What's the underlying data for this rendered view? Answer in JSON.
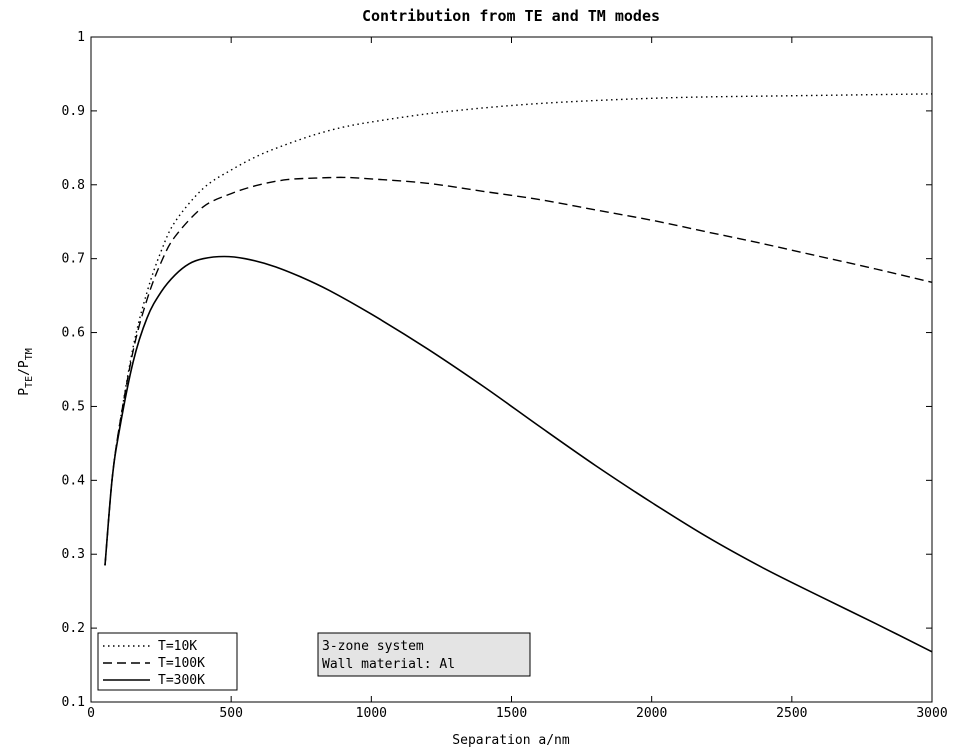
{
  "chart_data": {
    "type": "line",
    "title": "Contribution from TE and TM modes",
    "xlabel": "Separation a/nm",
    "ylabel": {
      "base1": "P",
      "sub1": "TE",
      "sep": "/",
      "base2": "P",
      "sub2": "TM"
    },
    "xlim": [
      0,
      3000
    ],
    "ylim": [
      0.1,
      1.0
    ],
    "xticks": [
      0,
      500,
      1000,
      1500,
      2000,
      2500,
      3000
    ],
    "yticks": [
      0.1,
      0.2,
      0.3,
      0.4,
      0.5,
      0.6,
      0.7,
      0.8,
      0.9,
      1.0
    ],
    "xtick_labels": [
      "0",
      "500",
      "1000",
      "1500",
      "2000",
      "2500",
      "3000"
    ],
    "ytick_labels": [
      "0.1",
      "0.2",
      "0.3",
      "0.4",
      "0.5",
      "0.6",
      "0.7",
      "0.8",
      "0.9",
      "1"
    ],
    "grid": false,
    "legend_position": "bottom-left",
    "series": [
      {
        "name": "T=10K",
        "style": "dotted",
        "color": "#000000",
        "points": [
          [
            50,
            0.285
          ],
          [
            75,
            0.4
          ],
          [
            100,
            0.47
          ],
          [
            150,
            0.58
          ],
          [
            200,
            0.655
          ],
          [
            250,
            0.71
          ],
          [
            300,
            0.75
          ],
          [
            400,
            0.795
          ],
          [
            500,
            0.82
          ],
          [
            600,
            0.84
          ],
          [
            700,
            0.855
          ],
          [
            800,
            0.868
          ],
          [
            900,
            0.878
          ],
          [
            1000,
            0.885
          ],
          [
            1200,
            0.896
          ],
          [
            1400,
            0.904
          ],
          [
            1600,
            0.91
          ],
          [
            1800,
            0.914
          ],
          [
            2000,
            0.917
          ],
          [
            2200,
            0.919
          ],
          [
            2400,
            0.92
          ],
          [
            2600,
            0.921
          ],
          [
            2800,
            0.922
          ],
          [
            3000,
            0.923
          ]
        ]
      },
      {
        "name": "T=100K",
        "style": "dashed",
        "color": "#000000",
        "points": [
          [
            50,
            0.285
          ],
          [
            75,
            0.4
          ],
          [
            100,
            0.47
          ],
          [
            150,
            0.575
          ],
          [
            200,
            0.645
          ],
          [
            250,
            0.695
          ],
          [
            300,
            0.73
          ],
          [
            400,
            0.77
          ],
          [
            500,
            0.788
          ],
          [
            600,
            0.8
          ],
          [
            700,
            0.807
          ],
          [
            800,
            0.809
          ],
          [
            900,
            0.81
          ],
          [
            1000,
            0.808
          ],
          [
            1200,
            0.802
          ],
          [
            1400,
            0.791
          ],
          [
            1600,
            0.78
          ],
          [
            1800,
            0.766
          ],
          [
            2000,
            0.752
          ],
          [
            2200,
            0.736
          ],
          [
            2400,
            0.72
          ],
          [
            2600,
            0.703
          ],
          [
            2800,
            0.686
          ],
          [
            3000,
            0.668
          ]
        ]
      },
      {
        "name": "T=300K",
        "style": "solid",
        "color": "#000000",
        "points": [
          [
            50,
            0.285
          ],
          [
            75,
            0.4
          ],
          [
            100,
            0.465
          ],
          [
            150,
            0.56
          ],
          [
            200,
            0.62
          ],
          [
            250,
            0.655
          ],
          [
            300,
            0.678
          ],
          [
            350,
            0.693
          ],
          [
            400,
            0.7
          ],
          [
            475,
            0.703
          ],
          [
            550,
            0.7
          ],
          [
            650,
            0.69
          ],
          [
            750,
            0.675
          ],
          [
            850,
            0.657
          ],
          [
            1000,
            0.625
          ],
          [
            1200,
            0.578
          ],
          [
            1400,
            0.527
          ],
          [
            1600,
            0.473
          ],
          [
            1800,
            0.42
          ],
          [
            2000,
            0.37
          ],
          [
            2200,
            0.323
          ],
          [
            2400,
            0.281
          ],
          [
            2600,
            0.243
          ],
          [
            2800,
            0.206
          ],
          [
            3000,
            0.168
          ]
        ]
      }
    ],
    "annotation": {
      "lines": [
        "3-zone system",
        "Wall material: Al"
      ],
      "background": "#e4e4e4"
    }
  }
}
